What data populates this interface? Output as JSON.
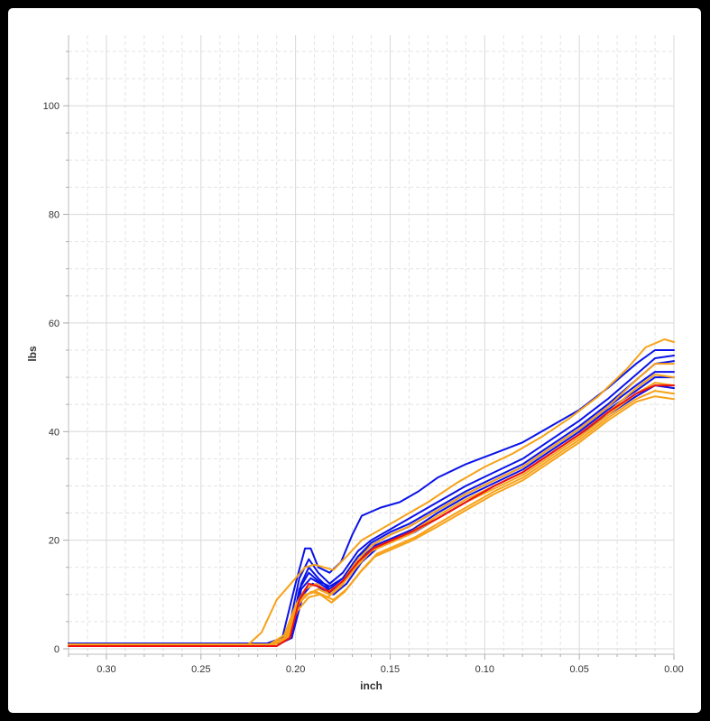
{
  "colors": {
    "blue": "#0a12e8",
    "orange": "#f7a21a",
    "red": "#ee1010"
  },
  "chart_data": {
    "type": "line",
    "xlabel": "inch",
    "ylabel": "lbs",
    "xlim": [
      0.32,
      0.0
    ],
    "ylim": [
      -1,
      113
    ],
    "x_reversed": true,
    "grid": true,
    "x_ticks": [
      0.3,
      0.25,
      0.2,
      0.15,
      0.1,
      0.05,
      0.0
    ],
    "x_tick_labels": [
      "0.30",
      "0.25",
      "0.20",
      "0.15",
      "0.10",
      "0.05",
      "0.00"
    ],
    "y_ticks": [
      0,
      20,
      40,
      60,
      80,
      100
    ],
    "y_tick_labels": [
      "0",
      "20",
      "40",
      "60",
      "80",
      "100"
    ],
    "series": [
      {
        "color": "blue",
        "points": [
          [
            0.32,
            1.0
          ],
          [
            0.215,
            1.0
          ],
          [
            0.207,
            2
          ],
          [
            0.2,
            12
          ],
          [
            0.195,
            18.5
          ],
          [
            0.192,
            18.5
          ],
          [
            0.188,
            15
          ],
          [
            0.182,
            14
          ],
          [
            0.176,
            16
          ],
          [
            0.17,
            21
          ],
          [
            0.165,
            24.5
          ],
          [
            0.155,
            26
          ],
          [
            0.145,
            27
          ],
          [
            0.135,
            29
          ],
          [
            0.125,
            31.5
          ],
          [
            0.11,
            34
          ],
          [
            0.095,
            36
          ],
          [
            0.08,
            38
          ],
          [
            0.065,
            41
          ],
          [
            0.05,
            44
          ],
          [
            0.035,
            48
          ],
          [
            0.02,
            52.5
          ],
          [
            0.01,
            55
          ],
          [
            0.0,
            55
          ]
        ]
      },
      {
        "color": "blue",
        "points": [
          [
            0.32,
            1.0
          ],
          [
            0.211,
            1.0
          ],
          [
            0.204,
            3
          ],
          [
            0.198,
            13
          ],
          [
            0.193,
            16.5
          ],
          [
            0.188,
            14
          ],
          [
            0.182,
            12
          ],
          [
            0.175,
            14
          ],
          [
            0.167,
            18
          ],
          [
            0.16,
            20
          ],
          [
            0.15,
            22
          ],
          [
            0.14,
            24
          ],
          [
            0.125,
            27
          ],
          [
            0.11,
            30
          ],
          [
            0.095,
            32.5
          ],
          [
            0.08,
            35
          ],
          [
            0.065,
            38.5
          ],
          [
            0.05,
            42
          ],
          [
            0.035,
            46
          ],
          [
            0.02,
            50.5
          ],
          [
            0.01,
            53.5
          ],
          [
            0.0,
            54
          ]
        ]
      },
      {
        "color": "blue",
        "points": [
          [
            0.32,
            1.0
          ],
          [
            0.209,
            1.0
          ],
          [
            0.203,
            3
          ],
          [
            0.197,
            12
          ],
          [
            0.193,
            15
          ],
          [
            0.188,
            13
          ],
          [
            0.182,
            11
          ],
          [
            0.175,
            13
          ],
          [
            0.167,
            17
          ],
          [
            0.16,
            19.5
          ],
          [
            0.15,
            21.5
          ],
          [
            0.14,
            23
          ],
          [
            0.125,
            26
          ],
          [
            0.11,
            29
          ],
          [
            0.095,
            31.5
          ],
          [
            0.08,
            34
          ],
          [
            0.065,
            37.5
          ],
          [
            0.05,
            41
          ],
          [
            0.035,
            45
          ],
          [
            0.02,
            49.5
          ],
          [
            0.01,
            52.5
          ],
          [
            0.0,
            53
          ]
        ]
      },
      {
        "color": "blue",
        "points": [
          [
            0.32,
            1.0
          ],
          [
            0.21,
            1.0
          ],
          [
            0.203,
            2
          ],
          [
            0.198,
            11
          ],
          [
            0.193,
            14
          ],
          [
            0.188,
            12.5
          ],
          [
            0.182,
            11.5
          ],
          [
            0.175,
            13
          ],
          [
            0.167,
            17
          ],
          [
            0.16,
            19
          ],
          [
            0.15,
            21
          ],
          [
            0.14,
            22.5
          ],
          [
            0.125,
            25.5
          ],
          [
            0.11,
            28.5
          ],
          [
            0.095,
            31
          ],
          [
            0.08,
            33.5
          ],
          [
            0.065,
            37
          ],
          [
            0.05,
            40.5
          ],
          [
            0.035,
            44.5
          ],
          [
            0.02,
            48.5
          ],
          [
            0.01,
            51
          ],
          [
            0.0,
            51
          ]
        ]
      },
      {
        "color": "blue",
        "points": [
          [
            0.32,
            1.0
          ],
          [
            0.209,
            1.0
          ],
          [
            0.202,
            2
          ],
          [
            0.197,
            11
          ],
          [
            0.192,
            13
          ],
          [
            0.187,
            12
          ],
          [
            0.181,
            10.5
          ],
          [
            0.174,
            12.5
          ],
          [
            0.166,
            16.5
          ],
          [
            0.158,
            19
          ],
          [
            0.148,
            20.5
          ],
          [
            0.138,
            22
          ],
          [
            0.125,
            25
          ],
          [
            0.11,
            28
          ],
          [
            0.095,
            30.5
          ],
          [
            0.08,
            33
          ],
          [
            0.065,
            36.5
          ],
          [
            0.05,
            40
          ],
          [
            0.035,
            44
          ],
          [
            0.02,
            47.5
          ],
          [
            0.01,
            50
          ],
          [
            0.0,
            50
          ]
        ]
      },
      {
        "color": "blue",
        "points": [
          [
            0.32,
            1.0
          ],
          [
            0.208,
            1.0
          ],
          [
            0.202,
            2
          ],
          [
            0.196,
            10
          ],
          [
            0.191,
            12
          ],
          [
            0.186,
            11
          ],
          [
            0.18,
            10
          ],
          [
            0.173,
            12
          ],
          [
            0.165,
            16
          ],
          [
            0.157,
            18.5
          ],
          [
            0.147,
            20
          ],
          [
            0.137,
            21.5
          ],
          [
            0.125,
            24
          ],
          [
            0.11,
            27
          ],
          [
            0.095,
            30
          ],
          [
            0.08,
            32.5
          ],
          [
            0.065,
            36
          ],
          [
            0.05,
            39.5
          ],
          [
            0.035,
            43
          ],
          [
            0.02,
            46.5
          ],
          [
            0.01,
            48.5
          ],
          [
            0.0,
            48
          ]
        ]
      },
      {
        "color": "orange",
        "points": [
          [
            0.32,
            0.8
          ],
          [
            0.225,
            0.8
          ],
          [
            0.218,
            3
          ],
          [
            0.21,
            9
          ],
          [
            0.205,
            11
          ],
          [
            0.2,
            13
          ],
          [
            0.195,
            15
          ],
          [
            0.19,
            15.5
          ],
          [
            0.185,
            15
          ],
          [
            0.18,
            14.5
          ],
          [
            0.173,
            17
          ],
          [
            0.165,
            20
          ],
          [
            0.155,
            22
          ],
          [
            0.145,
            24
          ],
          [
            0.13,
            27
          ],
          [
            0.115,
            30.5
          ],
          [
            0.1,
            33.5
          ],
          [
            0.085,
            36
          ],
          [
            0.07,
            39
          ],
          [
            0.055,
            42.5
          ],
          [
            0.04,
            46.5
          ],
          [
            0.025,
            51.5
          ],
          [
            0.015,
            55.5
          ],
          [
            0.005,
            57
          ],
          [
            0.0,
            56.5
          ]
        ]
      },
      {
        "color": "orange",
        "points": [
          [
            0.32,
            0.8
          ],
          [
            0.214,
            0.8
          ],
          [
            0.206,
            2.5
          ],
          [
            0.2,
            8
          ],
          [
            0.195,
            11
          ],
          [
            0.189,
            12
          ],
          [
            0.183,
            10.5
          ],
          [
            0.176,
            12
          ],
          [
            0.168,
            16
          ],
          [
            0.16,
            19
          ],
          [
            0.15,
            21
          ],
          [
            0.14,
            22.5
          ],
          [
            0.125,
            25.5
          ],
          [
            0.11,
            28.5
          ],
          [
            0.095,
            31
          ],
          [
            0.08,
            33.5
          ],
          [
            0.065,
            37
          ],
          [
            0.05,
            40.5
          ],
          [
            0.035,
            44.5
          ],
          [
            0.02,
            49.5
          ],
          [
            0.01,
            52.5
          ],
          [
            0.0,
            52.5
          ]
        ]
      },
      {
        "color": "orange",
        "points": [
          [
            0.32,
            0.8
          ],
          [
            0.212,
            0.8
          ],
          [
            0.205,
            2
          ],
          [
            0.199,
            8
          ],
          [
            0.194,
            10
          ],
          [
            0.188,
            11
          ],
          [
            0.182,
            10
          ],
          [
            0.175,
            12
          ],
          [
            0.167,
            15.5
          ],
          [
            0.159,
            18.5
          ],
          [
            0.149,
            20
          ],
          [
            0.139,
            21.5
          ],
          [
            0.125,
            24.5
          ],
          [
            0.11,
            27.5
          ],
          [
            0.095,
            30
          ],
          [
            0.08,
            32.5
          ],
          [
            0.065,
            36
          ],
          [
            0.05,
            39.5
          ],
          [
            0.035,
            43.5
          ],
          [
            0.02,
            48
          ],
          [
            0.01,
            50.5
          ],
          [
            0.0,
            50
          ]
        ]
      },
      {
        "color": "orange",
        "points": [
          [
            0.32,
            0.8
          ],
          [
            0.213,
            0.8
          ],
          [
            0.206,
            2
          ],
          [
            0.2,
            7.5
          ],
          [
            0.195,
            10
          ],
          [
            0.189,
            10.5
          ],
          [
            0.183,
            9.5
          ],
          [
            0.176,
            11.5
          ],
          [
            0.168,
            15
          ],
          [
            0.16,
            18
          ],
          [
            0.15,
            19.5
          ],
          [
            0.14,
            21
          ],
          [
            0.125,
            24
          ],
          [
            0.11,
            27
          ],
          [
            0.095,
            29.5
          ],
          [
            0.08,
            32
          ],
          [
            0.065,
            35.5
          ],
          [
            0.05,
            39
          ],
          [
            0.035,
            43
          ],
          [
            0.02,
            47
          ],
          [
            0.01,
            49
          ],
          [
            0.0,
            48.5
          ]
        ]
      },
      {
        "color": "orange",
        "points": [
          [
            0.32,
            0.8
          ],
          [
            0.211,
            0.8
          ],
          [
            0.204,
            2
          ],
          [
            0.198,
            8.5
          ],
          [
            0.192,
            10.5
          ],
          [
            0.186,
            10
          ],
          [
            0.18,
            9
          ],
          [
            0.173,
            11
          ],
          [
            0.165,
            14.5
          ],
          [
            0.157,
            17.5
          ],
          [
            0.147,
            19
          ],
          [
            0.137,
            20.5
          ],
          [
            0.125,
            23
          ],
          [
            0.11,
            26
          ],
          [
            0.095,
            29
          ],
          [
            0.08,
            31.5
          ],
          [
            0.065,
            35
          ],
          [
            0.05,
            38.5
          ],
          [
            0.035,
            42.5
          ],
          [
            0.02,
            46
          ],
          [
            0.01,
            47.5
          ],
          [
            0.0,
            47
          ]
        ]
      },
      {
        "color": "orange",
        "points": [
          [
            0.32,
            0.8
          ],
          [
            0.212,
            0.8
          ],
          [
            0.205,
            2
          ],
          [
            0.199,
            7
          ],
          [
            0.193,
            9.5
          ],
          [
            0.187,
            10
          ],
          [
            0.181,
            8.5
          ],
          [
            0.174,
            10.5
          ],
          [
            0.166,
            14
          ],
          [
            0.158,
            17
          ],
          [
            0.148,
            18.5
          ],
          [
            0.138,
            20
          ],
          [
            0.125,
            22.5
          ],
          [
            0.11,
            25.5
          ],
          [
            0.095,
            28.5
          ],
          [
            0.08,
            31
          ],
          [
            0.065,
            34.5
          ],
          [
            0.05,
            38
          ],
          [
            0.035,
            42
          ],
          [
            0.02,
            45.5
          ],
          [
            0.01,
            46.5
          ],
          [
            0.0,
            46
          ]
        ]
      },
      {
        "color": "red",
        "points": [
          [
            0.32,
            0.5
          ],
          [
            0.21,
            0.5
          ],
          [
            0.203,
            2
          ],
          [
            0.198,
            9
          ],
          [
            0.193,
            12
          ],
          [
            0.188,
            11.5
          ],
          [
            0.182,
            10.5
          ],
          [
            0.175,
            12.5
          ],
          [
            0.167,
            16
          ],
          [
            0.159,
            18.5
          ],
          [
            0.149,
            20
          ],
          [
            0.139,
            21.5
          ],
          [
            0.125,
            24
          ],
          [
            0.11,
            27
          ],
          [
            0.095,
            30
          ],
          [
            0.08,
            32.5
          ],
          [
            0.065,
            36
          ],
          [
            0.05,
            39.5
          ],
          [
            0.035,
            43.5
          ],
          [
            0.02,
            47
          ],
          [
            0.01,
            48.5
          ],
          [
            0.0,
            48.5
          ]
        ]
      }
    ]
  }
}
